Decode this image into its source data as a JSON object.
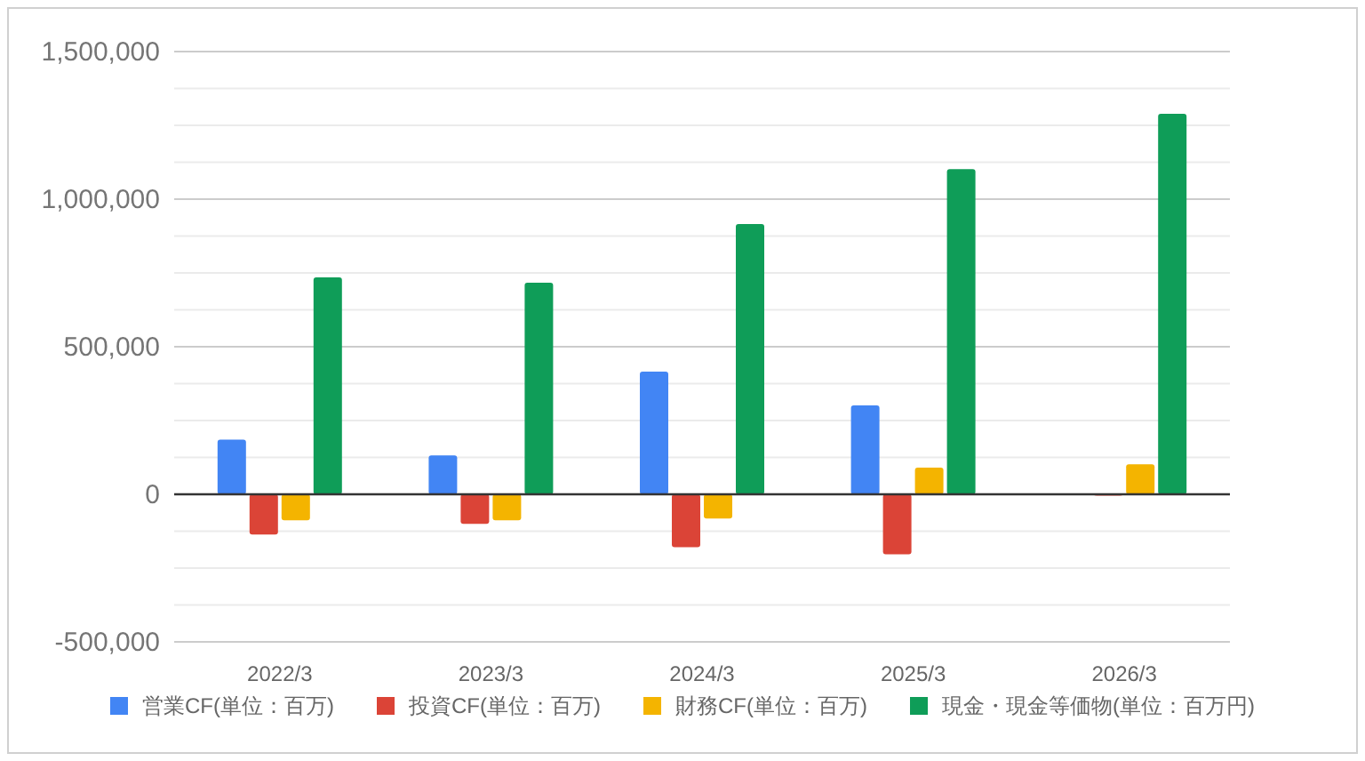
{
  "chart_data": {
    "type": "bar",
    "categories": [
      "2022/3",
      "2023/3",
      "2024/3",
      "2025/3",
      "2026/3"
    ],
    "series": [
      {
        "name": "営業CF(単位：百万)",
        "color": "#4285f4",
        "values": [
          185000,
          132000,
          416000,
          301000,
          null
        ]
      },
      {
        "name": "投資CF(単位：百万)",
        "color": "#db4437",
        "values": [
          -136000,
          -100000,
          -179000,
          -203000,
          -3000
        ]
      },
      {
        "name": "財務CF(単位：百万)",
        "color": "#f4b400",
        "values": [
          -88000,
          -88000,
          -82000,
          90000,
          102000
        ]
      },
      {
        "name": "現金・現金等価物(単位：百万円)",
        "color": "#0f9d58",
        "values": [
          735000,
          717000,
          916000,
          1102000,
          1289000
        ]
      }
    ],
    "ylim": [
      -500000,
      1500000
    ],
    "yticks": [
      {
        "value": -500000,
        "label": "-500,000"
      },
      {
        "value": -375000,
        "label": null
      },
      {
        "value": -250000,
        "label": null
      },
      {
        "value": -125000,
        "label": null
      },
      0,
      {
        "value": 125000,
        "label": null
      },
      {
        "value": 250000,
        "label": null
      },
      {
        "value": 375000,
        "label": null
      },
      {
        "value": 500000,
        "label": "500,000"
      },
      {
        "value": 625000,
        "label": null
      },
      {
        "value": 750000,
        "label": null
      },
      {
        "value": 875000,
        "label": null
      },
      {
        "value": 1000000,
        "label": "1,000,000"
      },
      {
        "value": 1125000,
        "label": null
      },
      {
        "value": 1250000,
        "label": null
      },
      {
        "value": 1375000,
        "label": null
      },
      {
        "value": 1500000,
        "label": "1,500,000"
      }
    ],
    "grid": true,
    "legend": "bottom"
  }
}
